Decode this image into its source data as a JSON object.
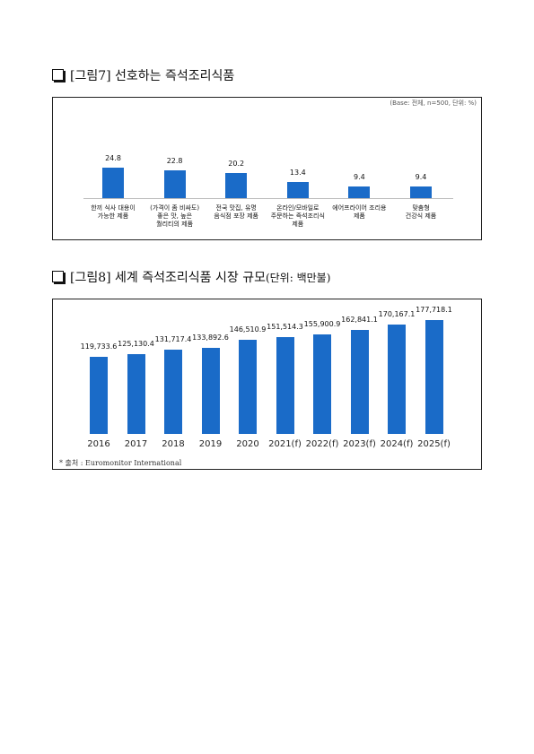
{
  "chart_data": [
    {
      "type": "bar",
      "title": "[그림7] 선호하는 즉석조리식품",
      "subtitle": "(Base: 전체, n=500, 단위: %)",
      "categories": [
        "한끼 식사 대용이\n가능한 제품",
        "(가격이 좀 비싸도)\n좋은 맛, 높은\n퀄리티의 제품",
        "전국 맛집, 유명\n음식점 포장 제품",
        "온라인/모바일로\n주문하는 즉석조리식\n제품",
        "에어프라이어 조리용\n제품",
        "맞춤형\n건강식 제품"
      ],
      "values": [
        24.8,
        22.8,
        20.2,
        13.4,
        9.4,
        9.4
      ],
      "color": "#1a6bc8"
    },
    {
      "type": "bar",
      "title": "[그림8] 세계 즉석조리식품 시장 규모",
      "subtitle": "(단위: 백만불)",
      "categories": [
        "2016",
        "2017",
        "2018",
        "2019",
        "2020",
        "2021(f)",
        "2022(f)",
        "2023(f)",
        "2024(f)",
        "2025(f)"
      ],
      "values": [
        119733.6,
        125130.4,
        131717.4,
        133892.6,
        146510.9,
        151514.3,
        155900.9,
        162841.1,
        170167.1,
        177718.1
      ],
      "value_labels": [
        "119,733.6",
        "125,130.4",
        "131,717.4",
        "133,892.6",
        "146,510.9",
        "151,514.3",
        "155,900.9",
        "162,841.1",
        "170,167.1",
        "177,718.1"
      ],
      "color": "#1a6bc8",
      "note": "* 출처 : Euromonitor International"
    }
  ]
}
